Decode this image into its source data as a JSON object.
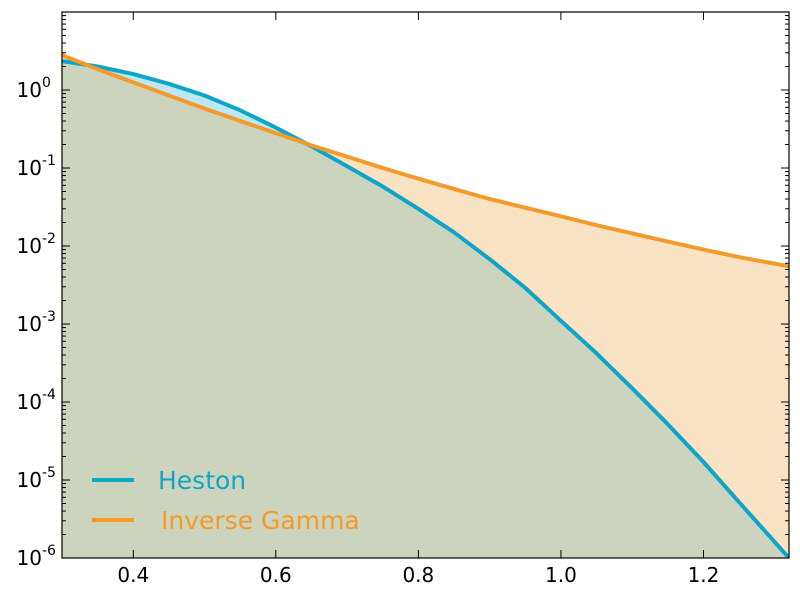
{
  "chart_data": {
    "type": "area",
    "title": "",
    "xlabel": "",
    "ylabel": "",
    "yscale": "log",
    "xlim": [
      0.3,
      1.32
    ],
    "ylim": [
      1e-06,
      10
    ],
    "grid": false,
    "legend_position": "lower-left",
    "x_ticks": [
      {
        "value": 0.4,
        "label": "0.4"
      },
      {
        "value": 0.6,
        "label": "0.6"
      },
      {
        "value": 0.8,
        "label": "0.8"
      },
      {
        "value": 1.0,
        "label": "1.0"
      },
      {
        "value": 1.2,
        "label": "1.2"
      }
    ],
    "y_ticks": [
      {
        "value": 1e-06,
        "base": "10",
        "exp": "-6"
      },
      {
        "value": 1e-05,
        "base": "10",
        "exp": "-5"
      },
      {
        "value": 0.0001,
        "base": "10",
        "exp": "-4"
      },
      {
        "value": 0.001,
        "base": "10",
        "exp": "-3"
      },
      {
        "value": 0.01,
        "base": "10",
        "exp": "-2"
      },
      {
        "value": 0.1,
        "base": "10",
        "exp": "-1"
      },
      {
        "value": 1,
        "base": "10",
        "exp": "0"
      }
    ],
    "series": [
      {
        "name": "Heston",
        "color": "#0ea5c9",
        "fill_color": "#bde8f1",
        "x": [
          0.3,
          0.35,
          0.4,
          0.45,
          0.5,
          0.55,
          0.6,
          0.65,
          0.7,
          0.75,
          0.8,
          0.85,
          0.9,
          0.95,
          1.0,
          1.05,
          1.1,
          1.15,
          1.2,
          1.25,
          1.32
        ],
        "y": [
          2.35,
          2.0,
          1.6,
          1.2,
          0.85,
          0.55,
          0.33,
          0.19,
          0.105,
          0.058,
          0.03,
          0.015,
          0.0068,
          0.0029,
          0.0011,
          0.00042,
          0.00015,
          5.2e-05,
          1.7e-05,
          5.2e-06,
          1e-06
        ]
      },
      {
        "name": "Inverse Gamma",
        "color": "#f39a2b",
        "fill_color": "#fae3c4",
        "x": [
          0.3,
          0.35,
          0.4,
          0.45,
          0.5,
          0.55,
          0.6,
          0.65,
          0.7,
          0.75,
          0.8,
          0.85,
          0.9,
          0.95,
          1.0,
          1.05,
          1.1,
          1.15,
          1.2,
          1.25,
          1.32
        ],
        "y": [
          2.8,
          1.85,
          1.25,
          0.85,
          0.58,
          0.4,
          0.28,
          0.195,
          0.14,
          0.1,
          0.073,
          0.054,
          0.04,
          0.031,
          0.024,
          0.0185,
          0.0145,
          0.0114,
          0.009,
          0.0072,
          0.0055
        ]
      }
    ],
    "overlap_fill_color": "#cdd4bd"
  }
}
